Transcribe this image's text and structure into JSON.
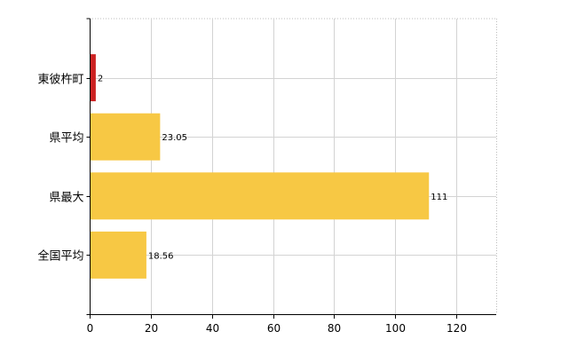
{
  "chart_data": {
    "type": "bar",
    "orientation": "horizontal",
    "categories": [
      "東彼杵町",
      "県平均",
      "県最大",
      "全国平均"
    ],
    "values": [
      2,
      23.05,
      111,
      18.56
    ],
    "data_labels": [
      "2",
      "23.05",
      "111",
      "18.56"
    ],
    "colors": [
      "#cc2222",
      "#f7c844",
      "#f7c844",
      "#f7c844"
    ],
    "xlim": [
      0,
      133
    ],
    "xticks": [
      0,
      20,
      40,
      60,
      80,
      100,
      120
    ],
    "grid": true,
    "title": "",
    "xlabel": "",
    "ylabel": ""
  }
}
